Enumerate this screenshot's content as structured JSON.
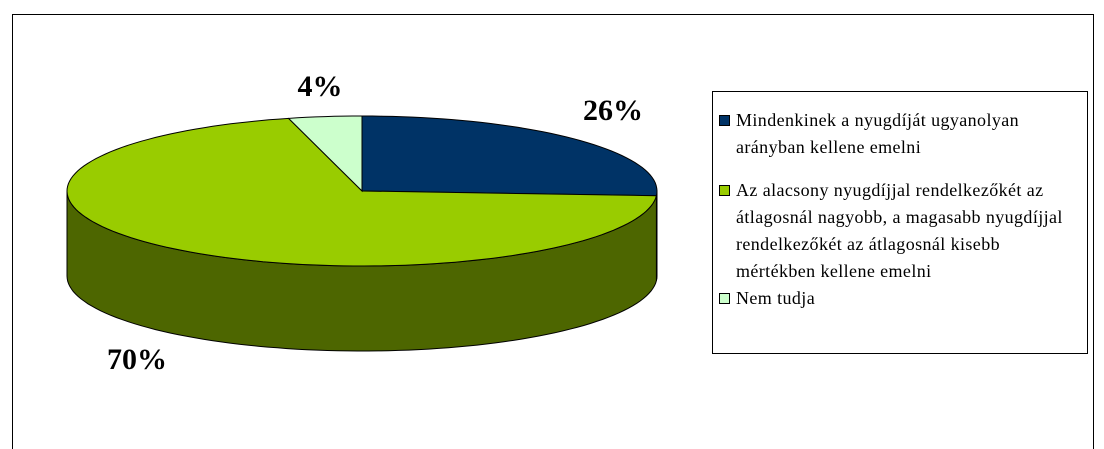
{
  "chart_data": {
    "type": "pie",
    "categories": [
      "Mindenkinek a nyugdíját ugyanolyan arányban kellene emelni",
      "Az alacsony nyugdíjjal rendelkezőkét az átlagosnál nagyobb, a magasabb nyugdíjjal rendelkezőkét az átlagosnál kisebb mértékben kellene emelni",
      "Nem tudja"
    ],
    "values": [
      26,
      70,
      4
    ],
    "value_labels": [
      "26%",
      "70%",
      "4%"
    ],
    "colors": [
      "#003366",
      "#99cc00",
      "#ccffcc"
    ],
    "legend": "right"
  }
}
